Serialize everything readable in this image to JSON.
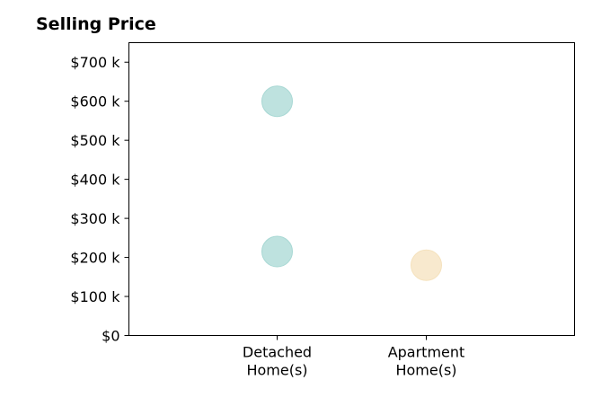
{
  "chart_data": {
    "type": "scatter",
    "title": "Selling Price",
    "xlabel": "",
    "ylabel": "",
    "categories": [
      [
        "Detached",
        "Home(s)"
      ],
      [
        "Apartment",
        "Home(s)"
      ]
    ],
    "ylim": [
      0,
      750000
    ],
    "yticks": [
      {
        "value": 0,
        "label": "$0"
      },
      {
        "value": 100000,
        "label": "$100 k"
      },
      {
        "value": 200000,
        "label": "$200 k"
      },
      {
        "value": 300000,
        "label": "$300 k"
      },
      {
        "value": 400000,
        "label": "$400 k"
      },
      {
        "value": 500000,
        "label": "$500 k"
      },
      {
        "value": 600000,
        "label": "$600 k"
      },
      {
        "value": 700000,
        "label": "$700 k"
      }
    ],
    "points": [
      {
        "category": 0,
        "value": 600000,
        "color": "#a8d8d4"
      },
      {
        "category": 0,
        "value": 215000,
        "color": "#a8d8d4"
      },
      {
        "category": 1,
        "value": 180000,
        "color": "#f5e2bd"
      }
    ],
    "grid": false,
    "legend": "none"
  }
}
